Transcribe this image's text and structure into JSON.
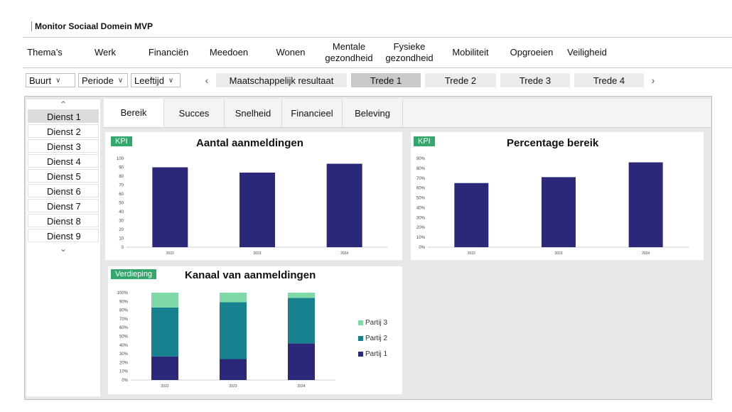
{
  "app": {
    "title": "Monitor Sociaal Domein MVP"
  },
  "nav": [
    {
      "label": "Thema’s",
      "width": 62
    },
    {
      "label": "Werk",
      "width": 108
    },
    {
      "label": "Financiën",
      "width": 70
    },
    {
      "label": "Meedoen",
      "width": 100
    },
    {
      "label": "Wonen",
      "width": 74
    },
    {
      "label": "Mentale\ngezondheid",
      "width": 90
    },
    {
      "label": "Fysieke\ngezondheid",
      "width": 80
    },
    {
      "label": "Mobiliteit",
      "width": 92
    },
    {
      "label": "Opgroeien",
      "width": 80
    },
    {
      "label": "Veiligheid",
      "width": 76
    }
  ],
  "filters": [
    {
      "label": "Buurt",
      "width": 70
    },
    {
      "label": "Periode",
      "width": 70
    },
    {
      "label": "Leeftijd",
      "width": 70
    }
  ],
  "steps": {
    "prev": "‹",
    "next": "›",
    "items": [
      {
        "label": "Maatschappelijk resultaat",
        "active": false
      },
      {
        "label": "Trede 1",
        "active": true
      },
      {
        "label": "Trede 2",
        "active": false
      },
      {
        "label": "Trede 3",
        "active": false
      },
      {
        "label": "Trede 4",
        "active": false
      }
    ]
  },
  "sidebar": {
    "up": "⌃",
    "down": "⌄",
    "items": [
      {
        "label": "Dienst 1",
        "active": true
      },
      {
        "label": "Dienst 2",
        "active": false
      },
      {
        "label": "Dienst 3",
        "active": false
      },
      {
        "label": "Dienst 4",
        "active": false
      },
      {
        "label": "Dienst 5",
        "active": false
      },
      {
        "label": "Dienst 6",
        "active": false
      },
      {
        "label": "Dienst 7",
        "active": false
      },
      {
        "label": "Dienst 8",
        "active": false
      },
      {
        "label": "Dienst 9",
        "active": false
      }
    ]
  },
  "tabs": [
    {
      "label": "Bereik",
      "active": true
    },
    {
      "label": "Succes",
      "active": false
    },
    {
      "label": "Snelheid",
      "active": false
    },
    {
      "label": "Financieel",
      "active": false
    },
    {
      "label": "Beleving",
      "active": false
    }
  ],
  "colors": {
    "bar": "#2b2879",
    "badge": "#34a76c",
    "partij1": "#2b2879",
    "partij2": "#17818f",
    "partij3": "#7fd9a7"
  },
  "cards": {
    "c1": {
      "badge": "KPI",
      "title": "Aantal aanmeldingen"
    },
    "c2": {
      "badge": "KPI",
      "title": "Percentage bereik"
    },
    "c3": {
      "badge": "Verdieping",
      "title": "Kanaal van aanmeldingen"
    }
  },
  "chart_data": [
    {
      "type": "bar",
      "title": "Aantal aanmeldingen",
      "categories": [
        "2022",
        "2023",
        "2024"
      ],
      "values": [
        90,
        84,
        94
      ],
      "ylim": [
        0,
        100
      ],
      "yticks": [
        "100",
        "90",
        "80",
        "70",
        "60",
        "50",
        "40",
        "30",
        "20",
        "10",
        "0"
      ]
    },
    {
      "type": "bar",
      "title": "Percentage bereik",
      "categories": [
        "2022",
        "2023",
        "2024"
      ],
      "values": [
        65,
        71,
        86
      ],
      "ylim": [
        0,
        90
      ],
      "yticks": [
        "90%",
        "80%",
        "70%",
        "60%",
        "50%",
        "40%",
        "30%",
        "20%",
        "10%",
        "0%"
      ]
    },
    {
      "type": "bar",
      "stacked": true,
      "title": "Kanaal van aanmeldingen",
      "categories": [
        "2022",
        "2023",
        "2024"
      ],
      "ylim": [
        0,
        100
      ],
      "yticks": [
        "100%",
        "90%",
        "80%",
        "70%",
        "60%",
        "50%",
        "40%",
        "30%",
        "20%",
        "10%",
        "0%"
      ],
      "series": [
        {
          "name": "Partij 1",
          "values": [
            27,
            24,
            42
          ]
        },
        {
          "name": "Partij 2",
          "values": [
            56,
            65,
            52
          ]
        },
        {
          "name": "Partij 3",
          "values": [
            17,
            11,
            6
          ]
        }
      ],
      "legend": "right"
    }
  ]
}
